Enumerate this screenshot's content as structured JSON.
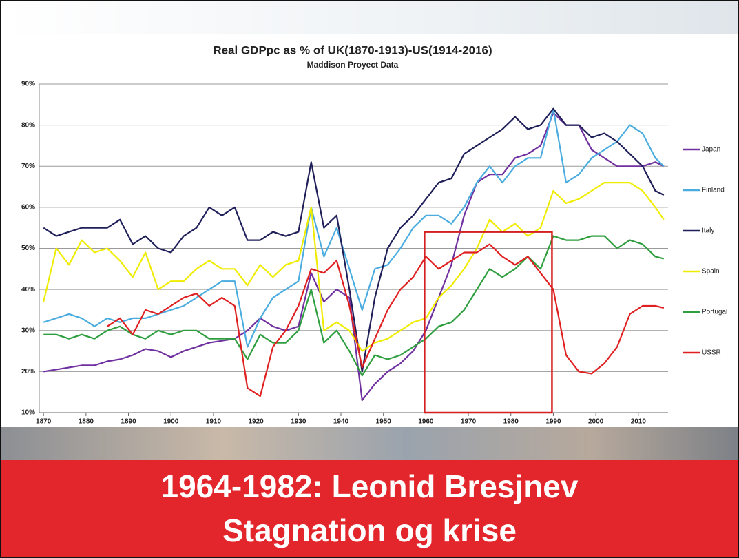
{
  "chart_data": {
    "type": "line",
    "title": "Real GDPpc as % of UK(1870-1913)-US(1914-2016)",
    "subtitle": "Maddison Proyect Data",
    "x": [
      1870,
      1873,
      1876,
      1879,
      1882,
      1885,
      1888,
      1891,
      1894,
      1897,
      1900,
      1903,
      1906,
      1909,
      1912,
      1915,
      1918,
      1921,
      1924,
      1927,
      1930,
      1933,
      1936,
      1939,
      1942,
      1945,
      1948,
      1951,
      1954,
      1957,
      1960,
      1963,
      1966,
      1969,
      1972,
      1975,
      1978,
      1981,
      1984,
      1987,
      1990,
      1993,
      1996,
      1999,
      2002,
      2005,
      2008,
      2011,
      2014,
      2016
    ],
    "series": [
      {
        "name": "Japan",
        "color": "#7030a0",
        "values": [
          20,
          20.5,
          21,
          21.5,
          21.5,
          22.5,
          23,
          24,
          25.5,
          25,
          23.5,
          25,
          26,
          27,
          27.5,
          28,
          30,
          33,
          31,
          30,
          31,
          44,
          37,
          40,
          38,
          13,
          17,
          20,
          22,
          25,
          30,
          38,
          46,
          58,
          66,
          68,
          68,
          72,
          73,
          75,
          83,
          80,
          80,
          74,
          72,
          70,
          70,
          70,
          71,
          70
        ]
      },
      {
        "name": "Finland",
        "color": "#4aacdf",
        "values": [
          32,
          33,
          34,
          33,
          31,
          33,
          32,
          33,
          33,
          34,
          35,
          36,
          38,
          40,
          42,
          42,
          26,
          33,
          38,
          40,
          42,
          60,
          48,
          55,
          45,
          35,
          45,
          46,
          50,
          55,
          58,
          58,
          56,
          60,
          66,
          70,
          66,
          70,
          72,
          72,
          84,
          66,
          68,
          72,
          74,
          76,
          80,
          78,
          72,
          70
        ]
      },
      {
        "name": "Italy",
        "color": "#1f1f5a",
        "values": [
          55,
          53,
          54,
          55,
          55,
          55,
          57,
          51,
          53,
          50,
          49,
          53,
          55,
          60,
          58,
          60,
          52,
          52,
          54,
          53,
          54,
          71,
          55,
          58,
          40,
          20,
          38,
          50,
          55,
          58,
          62,
          66,
          67,
          73,
          75,
          77,
          79,
          82,
          79,
          80,
          84,
          80,
          80,
          77,
          78,
          76,
          73,
          70,
          64,
          63
        ]
      },
      {
        "name": "Spain",
        "color": "#f0ec00",
        "values": [
          37,
          50,
          46,
          52,
          49,
          50,
          47,
          43,
          49,
          40,
          42,
          42,
          45,
          47,
          45,
          45,
          41,
          46,
          43,
          46,
          47,
          60,
          30,
          32,
          30,
          25,
          27,
          28,
          30,
          32,
          33,
          38,
          41,
          45,
          50,
          57,
          54,
          56,
          53,
          55,
          64,
          61,
          62,
          64,
          66,
          66,
          66,
          64,
          60,
          57
        ]
      },
      {
        "name": "Portugal",
        "color": "#2e9e3e",
        "values": [
          29,
          29,
          28,
          29,
          28,
          30,
          31,
          29,
          28,
          30,
          29,
          30,
          30,
          28,
          28,
          28,
          23,
          29,
          27,
          27,
          30,
          40,
          27,
          30,
          25,
          19,
          24,
          23,
          24,
          26,
          28,
          31,
          32,
          35,
          40,
          45,
          43,
          45,
          48,
          45,
          53,
          52,
          52,
          53,
          53,
          50,
          52,
          51,
          48,
          47.5
        ]
      },
      {
        "name": "USSR",
        "color": "#e02020",
        "values": [
          null,
          null,
          null,
          null,
          null,
          31,
          33,
          29,
          35,
          34,
          36,
          38,
          39,
          36,
          38,
          36,
          16,
          14,
          26,
          30,
          36,
          45,
          44,
          47,
          36,
          21,
          28,
          35,
          40,
          43,
          48,
          45,
          47,
          49,
          49,
          51,
          48,
          46,
          48,
          44,
          40,
          24,
          20,
          19.5,
          22,
          26,
          34,
          36,
          36,
          35.5
        ]
      }
    ],
    "xlim": [
      1869,
      2017
    ],
    "xticks": [
      1870,
      1880,
      1890,
      1900,
      1910,
      1920,
      1930,
      1940,
      1950,
      1960,
      1970,
      1980,
      1990,
      2000,
      2010
    ],
    "ylim": [
      10,
      90
    ],
    "yticks": [
      {
        "value": 10,
        "label": "10%"
      },
      {
        "value": 20,
        "label": "20%"
      },
      {
        "value": 30,
        "label": "30%"
      },
      {
        "value": 40,
        "label": "40%"
      },
      {
        "value": 50,
        "label": "50%"
      },
      {
        "value": 60,
        "label": "60%"
      },
      {
        "value": 70,
        "label": "70%"
      },
      {
        "value": 80,
        "label": "80%"
      },
      {
        "value": 90,
        "label": "90%"
      }
    ],
    "grid": true
  },
  "banner": {
    "line1": "1964-1982: Leonid Bresjnev",
    "line2": "Stagnation og krise"
  }
}
